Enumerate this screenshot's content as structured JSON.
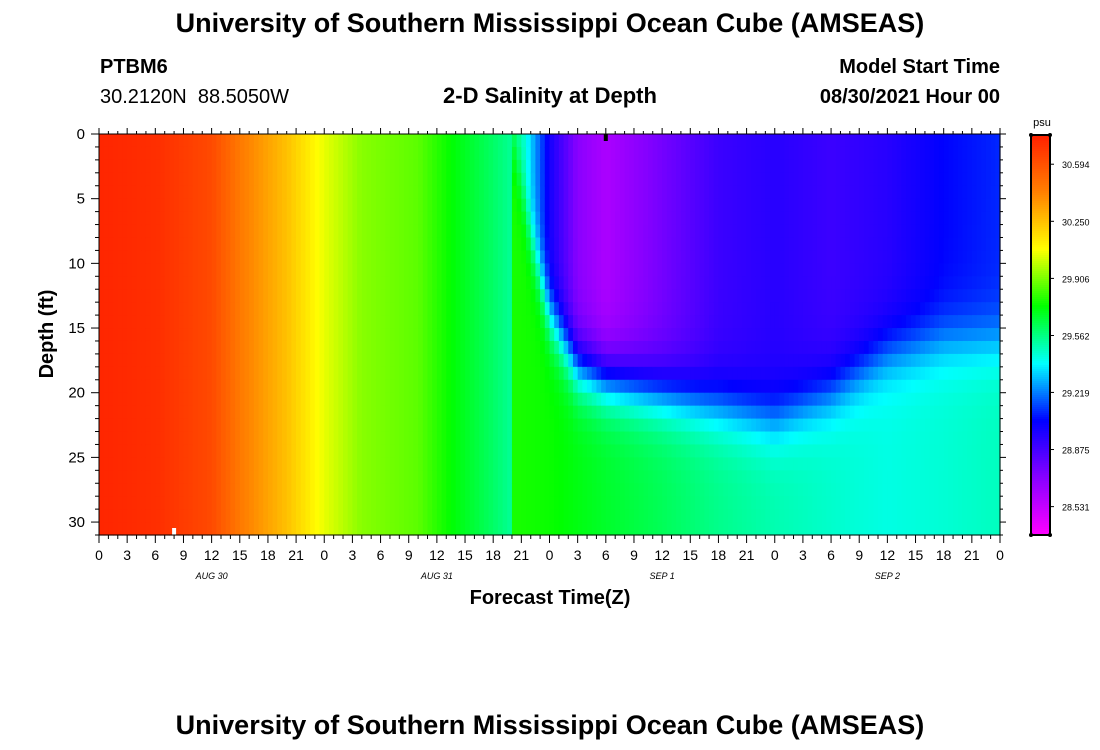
{
  "header": {
    "title": "University of Southern Mississippi Ocean Cube (AMSEAS)",
    "station_id": "PTBM6",
    "station_coords": "30.2120N  88.5050W",
    "plot_title": "2-D Salinity at Depth",
    "model_start_label": "Model Start Time",
    "model_start_value": "08/30/2021 Hour 00"
  },
  "footer": {
    "title": "University of Southern Mississippi Ocean Cube (AMSEAS)"
  },
  "chart_data": {
    "type": "heatmap",
    "title": "2-D Salinity at Depth",
    "xlabel": "Forecast Time(Z)",
    "ylabel": "Depth (ft)",
    "x_hours_range": [
      0,
      96
    ],
    "x_tick_step_hours": 3,
    "x_tick_labels": [
      "0",
      "3",
      "6",
      "9",
      "12",
      "15",
      "18",
      "21",
      "0",
      "3",
      "6",
      "9",
      "12",
      "15",
      "18",
      "21",
      "0",
      "3",
      "6",
      "9",
      "12",
      "15",
      "18",
      "21",
      "0",
      "3",
      "6",
      "9",
      "12",
      "15",
      "18",
      "21",
      "0"
    ],
    "x_date_labels": [
      {
        "hour": 12,
        "label": "AUG 30"
      },
      {
        "hour": 36,
        "label": "AUG 31"
      },
      {
        "hour": 60,
        "label": "SEP 1"
      },
      {
        "hour": 84,
        "label": "SEP 2"
      }
    ],
    "ylim": [
      0,
      31
    ],
    "y_ticks": [
      0,
      5,
      10,
      15,
      20,
      25,
      30
    ],
    "colorbar": {
      "unit": "psu",
      "range": [
        28.36,
        30.77
      ],
      "tick_values": [
        30.594,
        30.25,
        29.906,
        29.562,
        29.219,
        28.875,
        28.531
      ],
      "tick_labels": [
        "30.594",
        "30.250",
        "29.906",
        "29.562",
        "29.219",
        "28.875",
        "28.531"
      ],
      "colors_top_to_bottom": [
        "#ff2000",
        "#ff8000",
        "#ffff00",
        "#00ff00",
        "#00ffff",
        "#0000ff",
        "#8800ff",
        "#ff00ff"
      ]
    },
    "surface_salinity_by_hour": [
      {
        "hour": 0,
        "psu": 30.75
      },
      {
        "hour": 6,
        "psu": 30.72
      },
      {
        "hour": 12,
        "psu": 30.62
      },
      {
        "hour": 15,
        "psu": 30.45
      },
      {
        "hour": 20,
        "psu": 30.25
      },
      {
        "hour": 24,
        "psu": 30.05
      },
      {
        "hour": 28,
        "psu": 29.92
      },
      {
        "hour": 34,
        "psu": 29.86
      },
      {
        "hour": 38,
        "psu": 29.72
      },
      {
        "hour": 42,
        "psu": 29.6
      },
      {
        "hour": 45,
        "psu": 29.5
      },
      {
        "hour": 48,
        "psu": 29.0
      },
      {
        "hour": 51,
        "psu": 28.7
      },
      {
        "hour": 54,
        "psu": 28.6
      },
      {
        "hour": 57,
        "psu": 28.68
      },
      {
        "hour": 66,
        "psu": 28.9
      },
      {
        "hour": 72,
        "psu": 28.95
      },
      {
        "hour": 78,
        "psu": 28.9
      },
      {
        "hour": 84,
        "psu": 28.95
      },
      {
        "hour": 90,
        "psu": 29.05
      },
      {
        "hour": 96,
        "psu": 29.1
      }
    ],
    "bottom_salinity_by_hour": [
      {
        "hour": 0,
        "psu": 30.75
      },
      {
        "hour": 6,
        "psu": 30.72
      },
      {
        "hour": 12,
        "psu": 30.62
      },
      {
        "hour": 15,
        "psu": 30.45
      },
      {
        "hour": 20,
        "psu": 30.25
      },
      {
        "hour": 24,
        "psu": 30.05
      },
      {
        "hour": 28,
        "psu": 29.92
      },
      {
        "hour": 34,
        "psu": 29.86
      },
      {
        "hour": 38,
        "psu": 29.8
      },
      {
        "hour": 42,
        "psu": 29.78
      },
      {
        "hour": 48,
        "psu": 29.75
      },
      {
        "hour": 54,
        "psu": 29.68
      },
      {
        "hour": 60,
        "psu": 29.62
      },
      {
        "hour": 66,
        "psu": 29.55
      },
      {
        "hour": 72,
        "psu": 29.5
      },
      {
        "hour": 80,
        "psu": 29.45
      },
      {
        "hour": 84,
        "psu": 29.43
      },
      {
        "hour": 90,
        "psu": 29.45
      },
      {
        "hour": 96,
        "psu": 29.48
      }
    ],
    "halocline_depth_ft_by_hour": [
      {
        "hour": 44,
        "ft": 0
      },
      {
        "hour": 46,
        "ft": 8
      },
      {
        "hour": 48,
        "ft": 14
      },
      {
        "hour": 51,
        "ft": 18
      },
      {
        "hour": 54,
        "ft": 19
      },
      {
        "hour": 60,
        "ft": 20
      },
      {
        "hour": 66,
        "ft": 21
      },
      {
        "hour": 72,
        "ft": 22
      },
      {
        "hour": 78,
        "ft": 20
      },
      {
        "hour": 84,
        "ft": 17
      },
      {
        "hour": 90,
        "ft": 16
      },
      {
        "hour": 96,
        "ft": 16
      }
    ],
    "markers": [
      {
        "hour": 54,
        "depth_ft": 0,
        "color": "#000000"
      },
      {
        "hour": 8,
        "depth_ft": 31,
        "color": "#ffffff"
      }
    ]
  }
}
